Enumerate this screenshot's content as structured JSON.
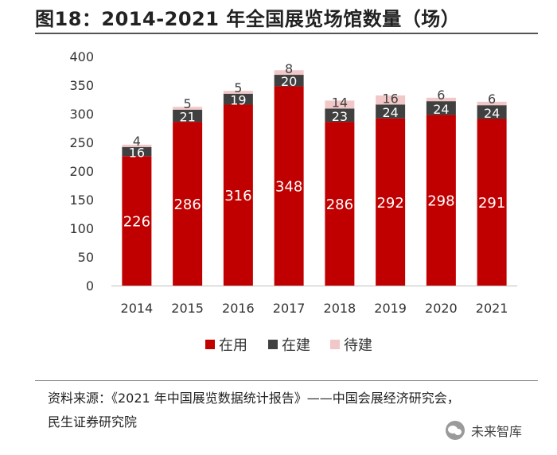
{
  "title": "图18：2014-2021 年全国展览场馆数量（场）",
  "source_line1": "资料来源：《2021 年中国展览数据统计报告》——中国会展经济研究会，",
  "source_line2": "民生证券研究院",
  "watermark": "未来智库",
  "chart_data": {
    "type": "bar",
    "stacked": true,
    "title": "2014-2021 年全国展览场馆数量（场）",
    "xlabel": "",
    "ylabel": "",
    "ylim": [
      0,
      400
    ],
    "yticks": [
      0,
      50,
      100,
      150,
      200,
      250,
      300,
      350,
      400
    ],
    "grid": false,
    "legend_position": "bottom",
    "categories": [
      "2014",
      "2015",
      "2016",
      "2017",
      "2018",
      "2019",
      "2020",
      "2021"
    ],
    "series": [
      {
        "name": "在用",
        "color": "#c00000",
        "label_color": "#ffffff",
        "values": [
          226,
          286,
          316,
          348,
          286,
          292,
          298,
          291
        ]
      },
      {
        "name": "在建",
        "color": "#404040",
        "label_color": "#ffffff",
        "values": [
          16,
          21,
          19,
          20,
          23,
          24,
          24,
          24
        ]
      },
      {
        "name": "待建",
        "color": "#f2c7c7",
        "label_color": "#404040",
        "values": [
          4,
          5,
          5,
          8,
          14,
          16,
          6,
          6
        ]
      }
    ]
  }
}
